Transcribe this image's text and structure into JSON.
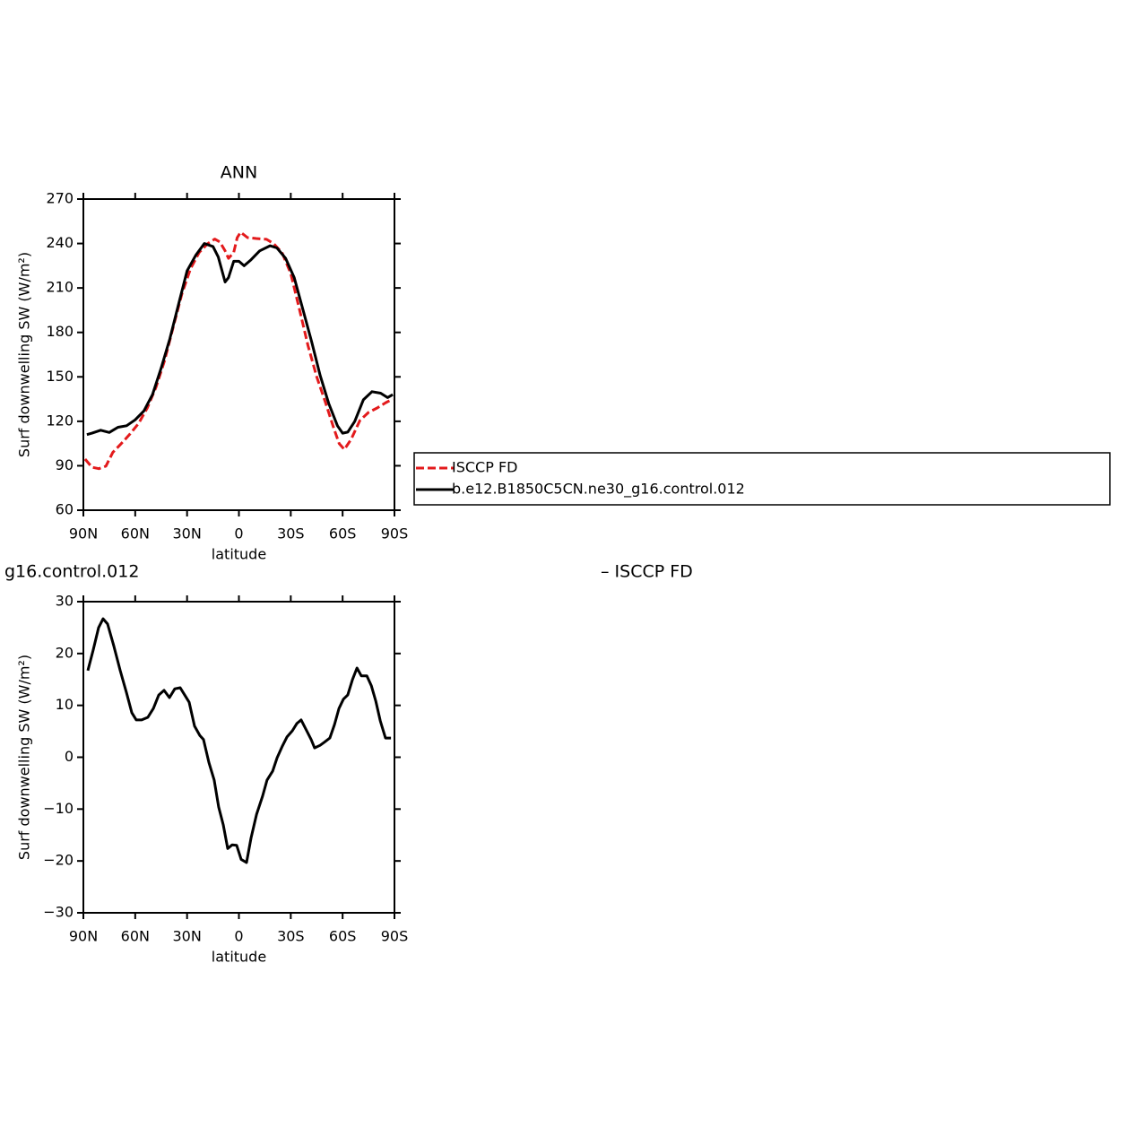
{
  "chart_data": [
    {
      "type": "line",
      "title": "ANN",
      "ylabel": "Surf downwelling SW (W/m²)",
      "xlabel": "latitude",
      "xlim": [
        90,
        -90
      ],
      "xticks": [
        {
          "value": 90,
          "label": "90N"
        },
        {
          "value": 60,
          "label": "60N"
        },
        {
          "value": 30,
          "label": "30N"
        },
        0,
        {
          "value": -30,
          "label": "30S"
        },
        {
          "value": -60,
          "label": "60S"
        },
        {
          "value": -90,
          "label": "90S"
        }
      ],
      "ylim": [
        60,
        270
      ],
      "yticks": [
        60,
        90,
        120,
        150,
        180,
        210,
        240,
        270
      ],
      "legend": "right",
      "series": [
        {
          "name": "ISCCP FD",
          "color": "#e31a1c",
          "line_style": "dashed",
          "x": [
            89,
            85,
            81,
            77,
            73,
            68,
            63,
            58,
            53,
            48,
            43,
            38,
            33,
            28,
            23,
            18,
            14,
            11,
            8,
            6,
            3,
            1,
            -1,
            -5,
            -10,
            -16,
            -20,
            -25,
            -30,
            -35,
            -40,
            -45,
            -50,
            -55,
            -58,
            -61,
            -65,
            -70,
            -75,
            -80,
            -85,
            -89
          ],
          "values": [
            94.5,
            89,
            88,
            89.7,
            99,
            105,
            111.5,
            118.7,
            129,
            143,
            161,
            183.5,
            206,
            223,
            234,
            240,
            243,
            241,
            235,
            230,
            234,
            244,
            247.6,
            244,
            243.4,
            242.8,
            240,
            233.7,
            219.8,
            195.6,
            171,
            150,
            133,
            115,
            105,
            101,
            108,
            120.5,
            126,
            129,
            132.6,
            135
          ]
        },
        {
          "name": "b.e12.B1850C5CN.ne30_g16.control.012",
          "color": "#000000",
          "line_style": "solid",
          "x": [
            88,
            85,
            80,
            75,
            70,
            65,
            60,
            55,
            50,
            45,
            40,
            35,
            30,
            25,
            20,
            15,
            12,
            8,
            6,
            3,
            0,
            -3,
            -7,
            -12,
            -18,
            -22,
            -27,
            -32,
            -37,
            -42,
            -47,
            -52,
            -57,
            -60,
            -63,
            -67,
            -72,
            -77,
            -82,
            -86,
            -89
          ],
          "values": [
            111,
            112,
            114,
            112.5,
            116,
            117,
            121,
            127,
            138,
            156,
            175.6,
            198.6,
            221.6,
            232,
            240,
            238,
            231,
            214,
            217,
            228,
            228,
            225,
            229,
            235,
            238.5,
            237,
            230,
            217,
            195.6,
            174,
            151,
            132,
            117,
            112,
            112.7,
            120,
            134.5,
            140,
            139,
            136,
            138
          ]
        }
      ]
    },
    {
      "type": "line",
      "title_fragments": [
        "g16.control.012",
        "– ISCCP FD"
      ],
      "ylabel": "Surf downwelling SW (W/m²)",
      "xlabel": "latitude",
      "xlim": [
        90,
        -90
      ],
      "xticks": [
        {
          "value": 90,
          "label": "90N"
        },
        {
          "value": 60,
          "label": "60N"
        },
        {
          "value": 30,
          "label": "30N"
        },
        0,
        {
          "value": -30,
          "label": "30S"
        },
        {
          "value": -60,
          "label": "60S"
        },
        {
          "value": -90,
          "label": "90S"
        }
      ],
      "ylim": [
        -30,
        30
      ],
      "yticks": [
        {
          "value": -30,
          "label": "−30"
        },
        {
          "value": -20,
          "label": "−20"
        },
        {
          "value": -10,
          "label": "−10"
        },
        0,
        10,
        20,
        30
      ],
      "series": [
        {
          "color": "#000000",
          "line_style": "solid",
          "x": [
            87.4,
            84.3,
            81.2,
            78.6,
            76,
            72.4,
            68.7,
            65.1,
            62,
            59.4,
            56.3,
            52.7,
            49.5,
            46.4,
            43.3,
            40.2,
            37.1,
            34,
            31.4,
            28.8,
            25.7,
            22.6,
            20.5,
            17.4,
            14.3,
            11.7,
            9.1,
            6.5,
            3.9,
            1.3,
            -1.3,
            -4.4,
            -7,
            -10.2,
            -13.7,
            -16.3,
            -19.5,
            -22.1,
            -25.2,
            -27.8,
            -30.9,
            -33.5,
            -36,
            -39.2,
            -41.8,
            -43.8,
            -47,
            -49.5,
            -52.6,
            -55.3,
            -57.9,
            -60.5,
            -63,
            -65.7,
            -68.3,
            -70.8,
            -74,
            -76.6,
            -79.2,
            -81.8,
            -84.8,
            -88
          ],
          "values": [
            16.7,
            20.7,
            25,
            26.7,
            25.7,
            21.5,
            16.7,
            12.5,
            8.6,
            7.2,
            7.2,
            7.7,
            9.4,
            12,
            12.9,
            11.5,
            13.2,
            13.4,
            12,
            10.6,
            6,
            4.2,
            3.4,
            -1,
            -4.4,
            -9.6,
            -13,
            -17.6,
            -16.9,
            -17,
            -19.7,
            -20.3,
            -15.6,
            -11,
            -7.5,
            -4.4,
            -2.7,
            -0.1,
            2.2,
            3.9,
            5.1,
            6.5,
            7.2,
            5.1,
            3.4,
            1.8,
            2.3,
            2.9,
            3.7,
            6.3,
            9.4,
            11.2,
            12,
            15,
            17.2,
            15.7,
            15.7,
            13.8,
            10.8,
            7,
            3.7,
            3.7
          ]
        }
      ]
    }
  ]
}
